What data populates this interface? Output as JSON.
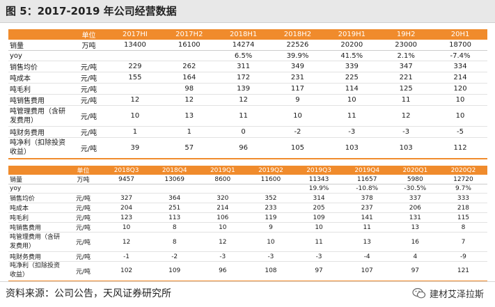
{
  "title": "图 5：2017-2019 年公司经营数据",
  "table1": {
    "header": [
      "",
      "单位",
      "2017HI",
      "2017H2",
      "2018H1",
      "2018H2",
      "2019H1",
      "19H2",
      "20H1"
    ],
    "rows": [
      [
        "销量",
        "万吨",
        "13400",
        "16100",
        "14274",
        "22526",
        "20200",
        "23000",
        "18700"
      ],
      [
        "yoy",
        "",
        "",
        "",
        "6.5%",
        "39.9%",
        "41.5%",
        "2.1%",
        "-7.4%"
      ],
      [
        "销售均价",
        "元/吨",
        "229",
        "262",
        "311",
        "349",
        "339",
        "347",
        "334"
      ],
      [
        "吨成本",
        "元/吨",
        "155",
        "164",
        "172",
        "231",
        "225",
        "221",
        "214"
      ],
      [
        "吨毛利",
        "元/吨",
        "",
        "98",
        "139",
        "117",
        "114",
        "125",
        "120"
      ],
      [
        "吨销售费用",
        "元/吨",
        "12",
        "12",
        "12",
        "9",
        "10",
        "11",
        "10"
      ],
      [
        "吨管理费用（含研发费用）",
        "元/吨",
        "10",
        "13",
        "11",
        "10",
        "11",
        "12",
        "10"
      ],
      [
        "吨财务费用",
        "元/吨",
        "1",
        "1",
        "0",
        "-2",
        "-3",
        "-3",
        "-5"
      ],
      [
        "吨净利（扣除投资收益）",
        "元/吨",
        "39",
        "57",
        "96",
        "105",
        "103",
        "103",
        "112"
      ]
    ]
  },
  "table2": {
    "header": [
      "",
      "单位",
      "2018Q3",
      "2018Q4",
      "2019Q1",
      "2019Q2",
      "2019Q3",
      "2019Q4",
      "2020Q1",
      "2020Q2"
    ],
    "rows": [
      [
        "销量",
        "万吨",
        "9457",
        "13069",
        "8600",
        "11600",
        "11343",
        "11657",
        "5980",
        "12720"
      ],
      [
        "yoy",
        "",
        "",
        "",
        "",
        "",
        "19.9%",
        "-10.8%",
        "-30.5%",
        "9.7%"
      ],
      [
        "销售均价",
        "元/吨",
        "327",
        "364",
        "320",
        "352",
        "314",
        "378",
        "337",
        "333"
      ],
      [
        "吨成本",
        "元/吨",
        "204",
        "251",
        "214",
        "233",
        "205",
        "237",
        "206",
        "218"
      ],
      [
        "吨毛利",
        "元/吨",
        "123",
        "113",
        "106",
        "119",
        "109",
        "141",
        "131",
        "115"
      ],
      [
        "吨销售费用",
        "元/吨",
        "10",
        "8",
        "10",
        "9",
        "10",
        "11",
        "13",
        "8"
      ],
      [
        "吨管理费用（含研发费用）",
        "元/吨",
        "12",
        "8",
        "12",
        "10",
        "11",
        "13",
        "16",
        "7"
      ],
      [
        "吨财务费用",
        "元/吨",
        "-1",
        "-2",
        "-3",
        "-3",
        "-3",
        "-4",
        "4",
        "-9"
      ],
      [
        "吨净利（扣除投资收益）",
        "元/吨",
        "102",
        "109",
        "96",
        "108",
        "97",
        "107",
        "97",
        "121"
      ]
    ]
  },
  "source": "资料来源：公司公告，天风证券研究所",
  "brand": "建材艾泽拉斯",
  "colors": {
    "header_bg": "#f08b2c",
    "header_text": "#ffffff"
  },
  "brand_icon": "wechat-icon"
}
